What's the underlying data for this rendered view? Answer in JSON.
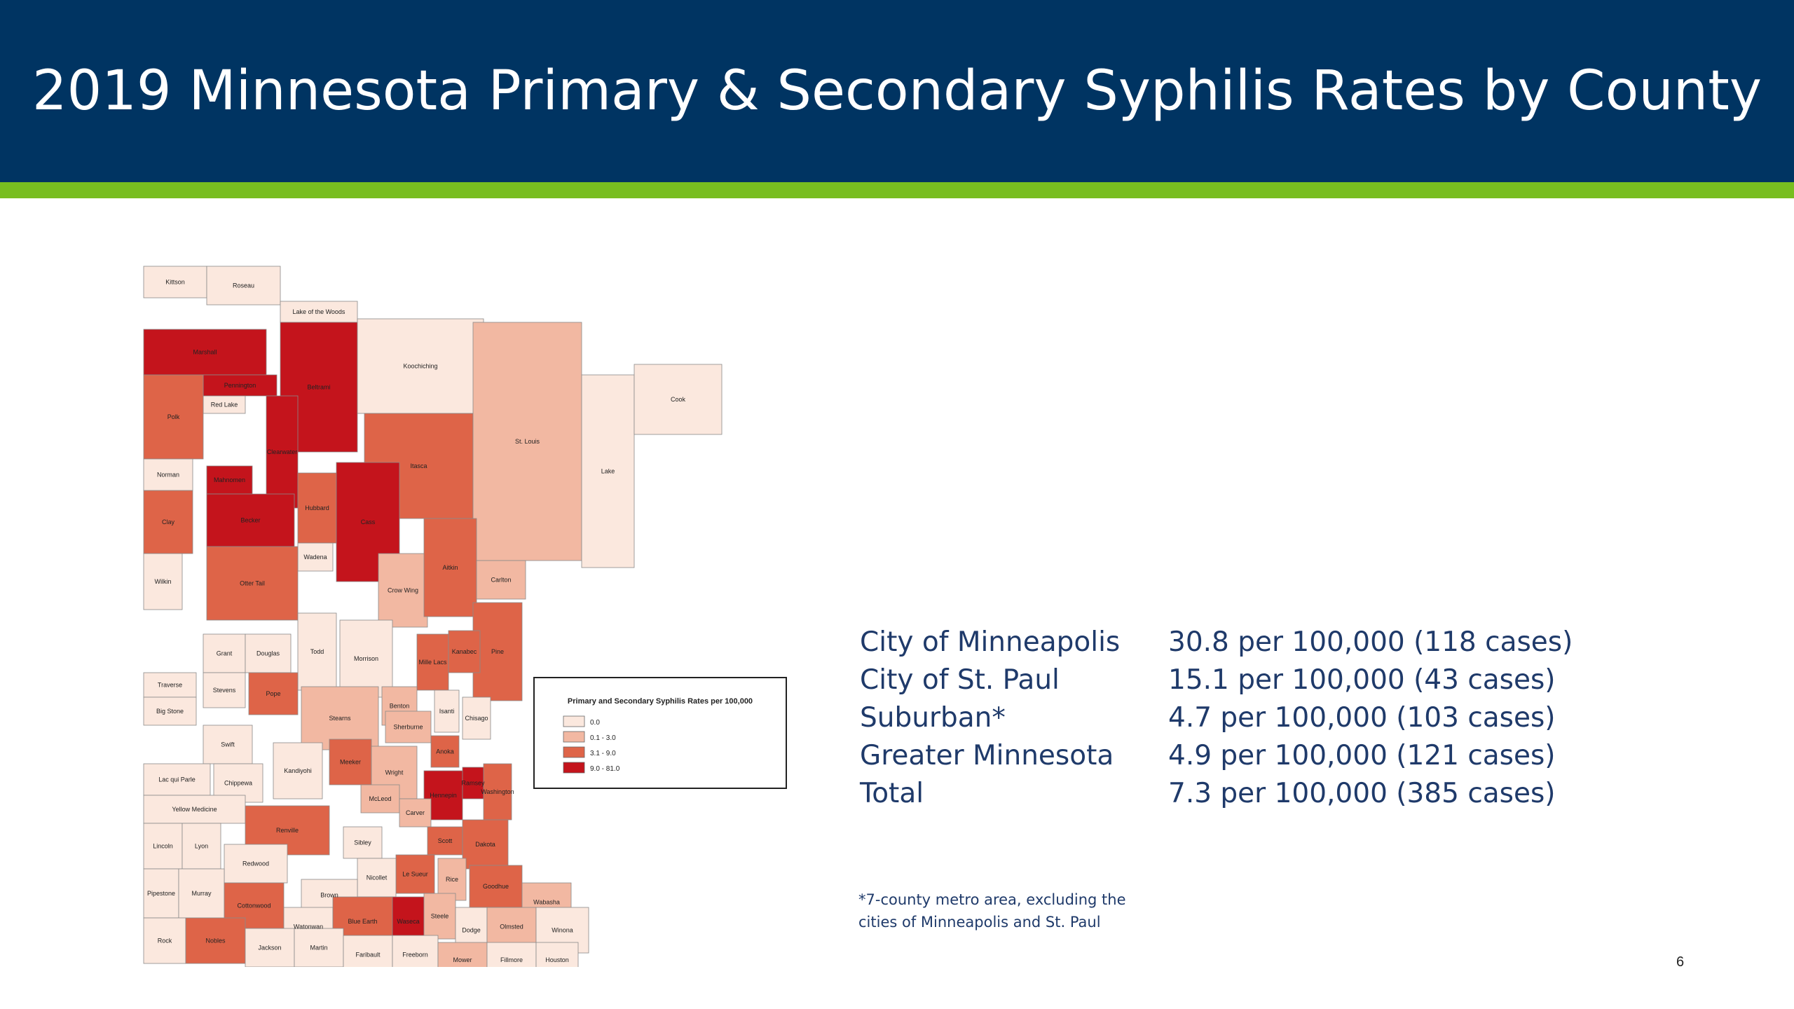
{
  "slide": {
    "title": "2019 Minnesota Primary & Secondary Syphilis Rates by County",
    "page_number": "6",
    "colors": {
      "header": "#003462",
      "accent": "#78be20",
      "text": "#1f3a6a"
    }
  },
  "map": {
    "legend": {
      "title": "Primary and Secondary Syphilis Rates per 100,000",
      "items": [
        {
          "label": "0.0",
          "color": "#fbe8de"
        },
        {
          "label": "0.1 - 3.0",
          "color": "#f2b8a2"
        },
        {
          "label": "3.1 - 9.0",
          "color": "#de6448"
        },
        {
          "label": "9.0 - 81.0",
          "color": "#c4141c"
        }
      ]
    },
    "counties": [
      {
        "name": "Kittson",
        "class": 0
      },
      {
        "name": "Roseau",
        "class": 0
      },
      {
        "name": "Lake of the Woods",
        "class": 0
      },
      {
        "name": "Marshall",
        "class": 3
      },
      {
        "name": "Pennington",
        "class": 3
      },
      {
        "name": "Red Lake",
        "class": 0
      },
      {
        "name": "Polk",
        "class": 2
      },
      {
        "name": "Beltrami",
        "class": 3
      },
      {
        "name": "Clearwater",
        "class": 3
      },
      {
        "name": "Koochiching",
        "class": 0
      },
      {
        "name": "Itasca",
        "class": 2
      },
      {
        "name": "St. Louis",
        "class": 1
      },
      {
        "name": "Lake",
        "class": 0
      },
      {
        "name": "Cook",
        "class": 0
      },
      {
        "name": "Norman",
        "class": 0
      },
      {
        "name": "Mahnomen",
        "class": 3
      },
      {
        "name": "Clay",
        "class": 2
      },
      {
        "name": "Becker",
        "class": 3
      },
      {
        "name": "Hubbard",
        "class": 2
      },
      {
        "name": "Cass",
        "class": 3
      },
      {
        "name": "Wadena",
        "class": 0
      },
      {
        "name": "Otter Tail",
        "class": 2
      },
      {
        "name": "Wilkin",
        "class": 0
      },
      {
        "name": "Crow Wing",
        "class": 1
      },
      {
        "name": "Aitkin",
        "class": 2
      },
      {
        "name": "Carlton",
        "class": 1
      },
      {
        "name": "Pine",
        "class": 2
      },
      {
        "name": "Grant",
        "class": 0
      },
      {
        "name": "Douglas",
        "class": 0
      },
      {
        "name": "Todd",
        "class": 0
      },
      {
        "name": "Morrison",
        "class": 0
      },
      {
        "name": "Mille Lacs",
        "class": 2
      },
      {
        "name": "Kanabec",
        "class": 2
      },
      {
        "name": "Traverse",
        "class": 0
      },
      {
        "name": "Stevens",
        "class": 0
      },
      {
        "name": "Pope",
        "class": 2
      },
      {
        "name": "Stearns",
        "class": 1
      },
      {
        "name": "Benton",
        "class": 1
      },
      {
        "name": "Big Stone",
        "class": 0
      },
      {
        "name": "Swift",
        "class": 0
      },
      {
        "name": "Kandiyohi",
        "class": 0
      },
      {
        "name": "Meeker",
        "class": 2
      },
      {
        "name": "Wright",
        "class": 1
      },
      {
        "name": "Sherburne",
        "class": 1
      },
      {
        "name": "Isanti",
        "class": 0
      },
      {
        "name": "Chisago",
        "class": 0
      },
      {
        "name": "Lac qui Parle",
        "class": 0
      },
      {
        "name": "Chippewa",
        "class": 0
      },
      {
        "name": "Anoka",
        "class": 2
      },
      {
        "name": "Hennepin",
        "class": 3
      },
      {
        "name": "Ramsey",
        "class": 3
      },
      {
        "name": "Washington",
        "class": 2
      },
      {
        "name": "Yellow Medicine",
        "class": 0
      },
      {
        "name": "Renville",
        "class": 2
      },
      {
        "name": "McLeod",
        "class": 1
      },
      {
        "name": "Carver",
        "class": 1
      },
      {
        "name": "Scott",
        "class": 2
      },
      {
        "name": "Dakota",
        "class": 2
      },
      {
        "name": "Lincoln",
        "class": 0
      },
      {
        "name": "Lyon",
        "class": 0
      },
      {
        "name": "Redwood",
        "class": 0
      },
      {
        "name": "Sibley",
        "class": 0
      },
      {
        "name": "Le Sueur",
        "class": 2
      },
      {
        "name": "Rice",
        "class": 1
      },
      {
        "name": "Goodhue",
        "class": 2
      },
      {
        "name": "Wabasha",
        "class": 1
      },
      {
        "name": "Nicollet",
        "class": 0
      },
      {
        "name": "Brown",
        "class": 0
      },
      {
        "name": "Pipestone",
        "class": 0
      },
      {
        "name": "Murray",
        "class": 0
      },
      {
        "name": "Cottonwood",
        "class": 2
      },
      {
        "name": "Watonwan",
        "class": 0
      },
      {
        "name": "Blue Earth",
        "class": 2
      },
      {
        "name": "Waseca",
        "class": 3
      },
      {
        "name": "Steele",
        "class": 1
      },
      {
        "name": "Dodge",
        "class": 0
      },
      {
        "name": "Olmsted",
        "class": 1
      },
      {
        "name": "Winona",
        "class": 0
      },
      {
        "name": "Rock",
        "class": 0
      },
      {
        "name": "Nobles",
        "class": 2
      },
      {
        "name": "Jackson",
        "class": 0
      },
      {
        "name": "Martin",
        "class": 0
      },
      {
        "name": "Faribault",
        "class": 0
      },
      {
        "name": "Freeborn",
        "class": 0
      },
      {
        "name": "Mower",
        "class": 1
      },
      {
        "name": "Fillmore",
        "class": 0
      },
      {
        "name": "Houston",
        "class": 0
      }
    ]
  },
  "stats": {
    "rows": [
      {
        "region": "City of Minneapolis",
        "value": "30.8 per 100,000 (118 cases)"
      },
      {
        "region": "City of St. Paul",
        "value": "15.1 per 100,000 (43 cases)"
      },
      {
        "region": "Suburban*",
        "value": "4.7 per 100,000 (103 cases)"
      },
      {
        "region": "Greater Minnesota",
        "value": "4.9 per 100,000 (121 cases)"
      },
      {
        "region": "Total",
        "value": "7.3 per 100,000 (385 cases)"
      }
    ],
    "footnote_line1": "*7-county metro area, excluding the",
    "footnote_line2": "cities of Minneapolis and St. Paul"
  }
}
